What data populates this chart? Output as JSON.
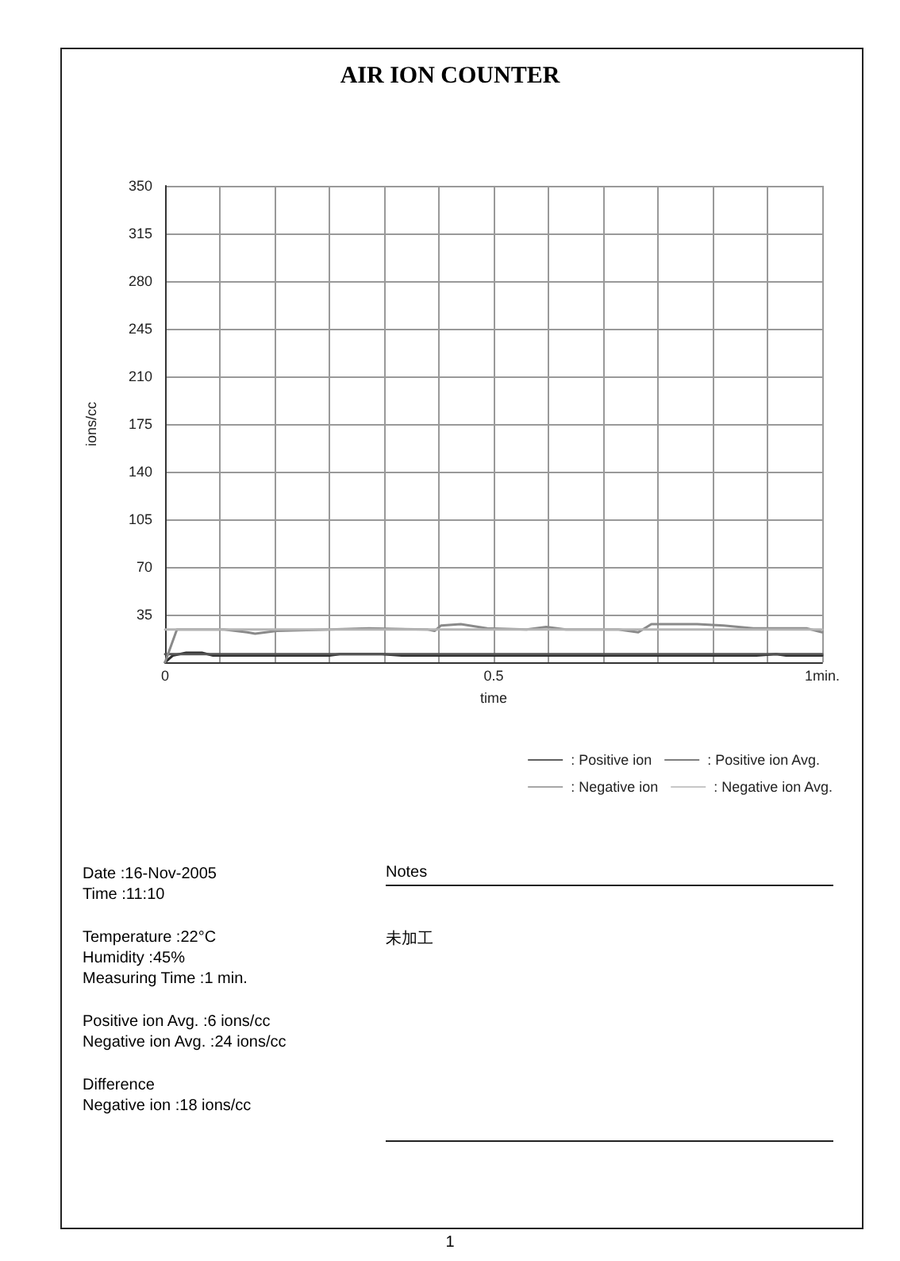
{
  "chart_data": {
    "type": "line",
    "title": "AIR ION COUNTER",
    "xlabel": "time",
    "ylabel": "ions/cc",
    "xlim": [
      0,
      1
    ],
    "xticks": [
      0,
      {
        "value": 0.0833,
        "label": null
      },
      {
        "value": 0.1667,
        "label": null
      },
      {
        "value": 0.25,
        "label": null
      },
      {
        "value": 0.3333,
        "label": null
      },
      {
        "value": 0.4167,
        "label": null
      },
      0.5,
      {
        "value": 0.5833,
        "label": null
      },
      {
        "value": 0.6667,
        "label": null
      },
      {
        "value": 0.75,
        "label": null
      },
      {
        "value": 0.8333,
        "label": null
      },
      {
        "value": 0.9167,
        "label": null
      },
      {
        "value": 1,
        "label": "1min."
      }
    ],
    "ylim": [
      0,
      350
    ],
    "yticks": [
      {
        "value": 0,
        "label": null
      },
      35,
      70,
      105,
      140,
      175,
      210,
      245,
      280,
      315,
      350
    ],
    "grid": true,
    "legend": "bottom",
    "marker": "none",
    "line_style": "solid",
    "series": [
      {
        "name": ": Positive ion",
        "color": "#2b2b2b",
        "x": [
          0,
          0.012,
          0.032,
          0.056,
          0.073,
          0.25,
          0.266,
          0.33,
          0.36,
          0.6,
          0.9,
          0.93,
          0.945,
          1
        ],
        "values": [
          0,
          5,
          7,
          7,
          5,
          5,
          6,
          6,
          5,
          5,
          5,
          6,
          5,
          5
        ]
      },
      {
        "name": ": Positive ion Avg.",
        "color": "#555555",
        "x": [
          0,
          1
        ],
        "values": [
          6,
          6
        ]
      },
      {
        "name": ": Negative ion",
        "color": "#8a8a8a",
        "x": [
          0,
          0.018,
          0.09,
          0.125,
          0.137,
          0.17,
          0.25,
          0.31,
          0.4,
          0.41,
          0.42,
          0.45,
          0.49,
          0.55,
          0.58,
          0.61,
          0.69,
          0.72,
          0.74,
          0.81,
          0.85,
          0.895,
          0.976,
          1
        ],
        "values": [
          0,
          24,
          24,
          22,
          21,
          23,
          24,
          25,
          24,
          23,
          27,
          28,
          25,
          24,
          26,
          24,
          24,
          22,
          28,
          28,
          27,
          25,
          25,
          22
        ]
      },
      {
        "name": ": Negative ion Avg.",
        "color": "#b5b5b5",
        "x": [
          0,
          1
        ],
        "values": [
          24,
          24
        ]
      }
    ],
    "annotations": [
      "Date :16-Nov-2005",
      "Time :11:10",
      "Temperature :22°C",
      "Humidity :45%",
      "Measuring Time :1 min.",
      "Positive ion Avg. :6 ions/cc",
      "Negative ion Avg. :24 ions/cc",
      "Difference",
      "Negative ion :18 ions/cc",
      "Notes",
      "未加工",
      "1"
    ]
  }
}
